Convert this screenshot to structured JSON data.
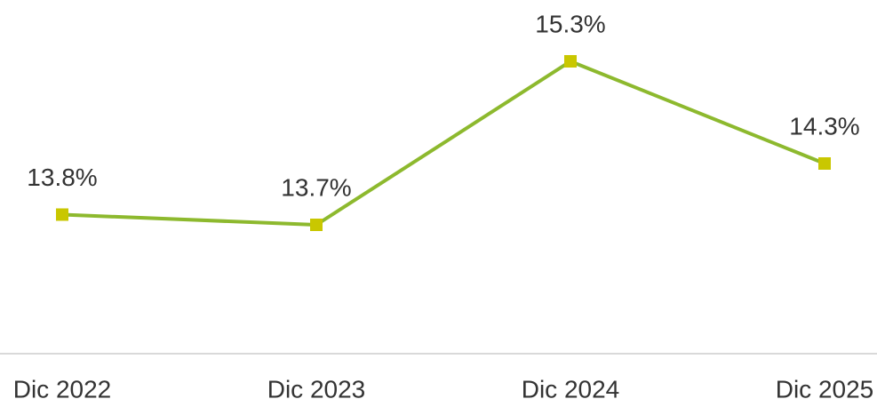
{
  "chart_data": {
    "type": "line",
    "categories": [
      "Dic 2022",
      "Dic 2023",
      "Dic 2024",
      "Dic 2025"
    ],
    "series": [
      {
        "color": "#8db92e",
        "marker_color": "#c9c700",
        "values": [
          13.8,
          13.7,
          15.3,
          14.3
        ],
        "value_labels": [
          "13.8%",
          "13.7%",
          "15.3%",
          "14.3%"
        ]
      }
    ],
    "ylim": [
      12.4,
      15.9
    ]
  }
}
